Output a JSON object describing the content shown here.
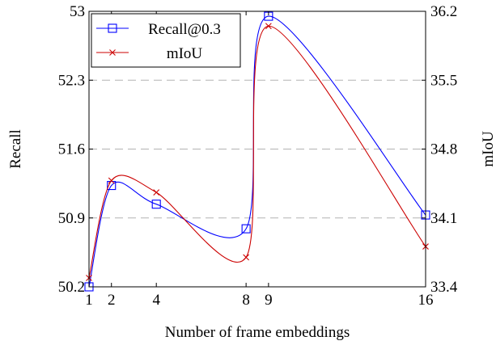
{
  "chart_data": {
    "type": "line",
    "xlabel": "Number of frame embeddings",
    "ylabel_left": "Recall",
    "ylabel_right": "mIoU",
    "x": [
      1,
      2,
      4,
      8,
      9,
      16
    ],
    "x_ticks": [
      1,
      2,
      4,
      8,
      9,
      16
    ],
    "xlim": [
      1,
      16
    ],
    "ylim_left": [
      50.2,
      53
    ],
    "ylim_right": [
      33.4,
      36.2
    ],
    "y_ticks_left": [
      "50.2",
      "50.9",
      "51.6",
      "52.3",
      "53"
    ],
    "y_ticks_right": [
      "33.4",
      "34.1",
      "34.8",
      "35.5",
      "36.2"
    ],
    "grid": "horizontal dashed",
    "legend_position": "top-left",
    "series": [
      {
        "name": "Recall@0.3",
        "axis": "left",
        "color": "#0000ff",
        "marker": "square",
        "values": [
          50.2,
          51.23,
          51.04,
          50.79,
          52.95,
          50.93
        ]
      },
      {
        "name": "mIoU",
        "axis": "right",
        "color": "#cc0000",
        "marker": "x",
        "values": [
          33.49,
          34.48,
          34.36,
          33.7,
          36.05,
          33.81
        ]
      }
    ]
  }
}
